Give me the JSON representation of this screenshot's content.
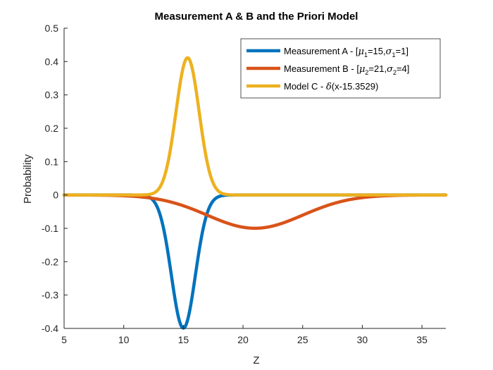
{
  "chart_data": {
    "type": "line",
    "title": "Measurement A & B and the Priori Model",
    "xlabel": "Z",
    "ylabel": "Probability",
    "xlim": [
      5,
      37
    ],
    "ylim": [
      -0.4,
      0.5
    ],
    "xticks": [
      "5",
      "10",
      "15",
      "20",
      "25",
      "30",
      "35"
    ],
    "yticks": [
      "-0.4",
      "-0.3",
      "-0.2",
      "-0.1",
      "0",
      "0.1",
      "0.2",
      "0.3",
      "0.4",
      "0.5"
    ],
    "grid": false,
    "legend_position": "top-right",
    "series": [
      {
        "name": "Measurement A - [μ1=15,σ1=1]",
        "legend": {
          "prefix": "Measurement A - [",
          "g1": "μ",
          "s1": "1",
          "mid": "=15,",
          "g2": "σ",
          "s2": "1",
          "suffix": "=1]"
        },
        "color": "#0072BD",
        "function": "negative normal pdf",
        "mu": 15,
        "sigma": 1,
        "sign": -1,
        "peak": -0.399
      },
      {
        "name": "Measurement B - [μ2=21,σ2=4]",
        "legend": {
          "prefix": "Measurement B - [",
          "g1": "μ",
          "s1": "2",
          "mid": "=21,",
          "g2": "σ",
          "s2": "2",
          "suffix": "=4]"
        },
        "color": "#D95319",
        "function": "negative normal pdf",
        "mu": 21,
        "sigma": 4,
        "sign": -1,
        "peak": -0.0997
      },
      {
        "name": "Model C - δ(x-15.3529)",
        "legend": {
          "prefix": "Model C - ",
          "g1": "δ",
          "s1": "",
          "mid": "(x-15.3529)",
          "g2": "",
          "s2": "",
          "suffix": ""
        },
        "color": "#EDB120",
        "function": "normal pdf",
        "mu": 15.3529,
        "sigma": 0.9701,
        "sign": 1,
        "peak": 0.411
      }
    ]
  }
}
